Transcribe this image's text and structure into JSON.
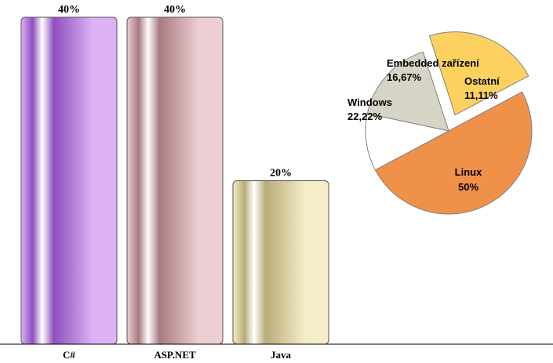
{
  "chart_data": [
    {
      "type": "bar",
      "categories": [
        "C#",
        "ASP.NET",
        "Java"
      ],
      "values": [
        40,
        40,
        20
      ],
      "value_labels": [
        "40%",
        "40%",
        "20%"
      ],
      "ylim": [
        0,
        40
      ],
      "grid": false,
      "colors": {
        "C#": [
          "#8e4fbe",
          "#dcb2f4"
        ],
        "ASP.NET": [
          "#a77a80",
          "#edcfd3"
        ],
        "Java": [
          "#b8ac78",
          "#f5ecc8"
        ]
      }
    },
    {
      "type": "pie",
      "slices": [
        {
          "label": "Linux",
          "value_label": "50%",
          "value": 50,
          "color": "#f0914a",
          "exploded": false
        },
        {
          "label": "Windows",
          "value_label": "22,22%",
          "value": 22.22,
          "color": "#fdd160",
          "exploded": true
        },
        {
          "label": "Embedded zařízení",
          "value_label": "16,67%",
          "value": 16.67,
          "color": "#d6d4c5",
          "exploded": false
        },
        {
          "label": "Ostatní",
          "value_label": "11,11%",
          "value": 11.11,
          "color": "#ffffff",
          "exploded": false
        }
      ]
    }
  ]
}
